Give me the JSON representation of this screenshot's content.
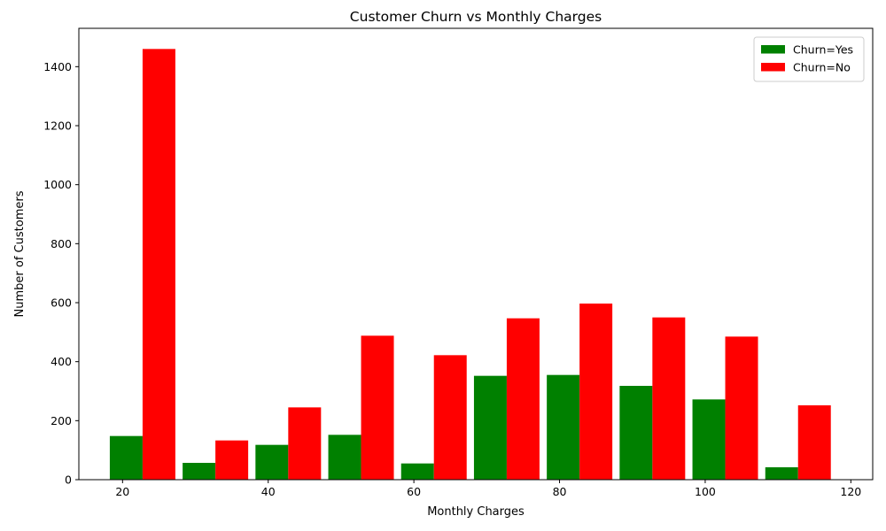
{
  "chart_data": {
    "type": "bar",
    "title": "Customer Churn vs Monthly Charges",
    "xlabel": "Monthly Charges",
    "ylabel": "Number of Customers",
    "xlim": [
      14,
      123
    ],
    "ylim": [
      0,
      1530
    ],
    "xticks": [
      20,
      40,
      60,
      80,
      100,
      120
    ],
    "yticks": [
      0,
      200,
      400,
      600,
      800,
      1000,
      1200,
      1400
    ],
    "bin_width": 10,
    "bin_starts": [
      18.25,
      28.25,
      38.25,
      48.25,
      58.25,
      68.25,
      78.25,
      88.25,
      98.25,
      108.25
    ],
    "grid": false,
    "legend_position": "top-right",
    "series": [
      {
        "name": "Churn=Yes",
        "color": "#008000",
        "values": [
          148,
          57,
          118,
          152,
          55,
          352,
          355,
          318,
          272,
          42
        ]
      },
      {
        "name": "Churn=No",
        "color": "#ff0000",
        "values": [
          1460,
          133,
          245,
          488,
          422,
          547,
          597,
          550,
          485,
          252
        ]
      }
    ]
  }
}
